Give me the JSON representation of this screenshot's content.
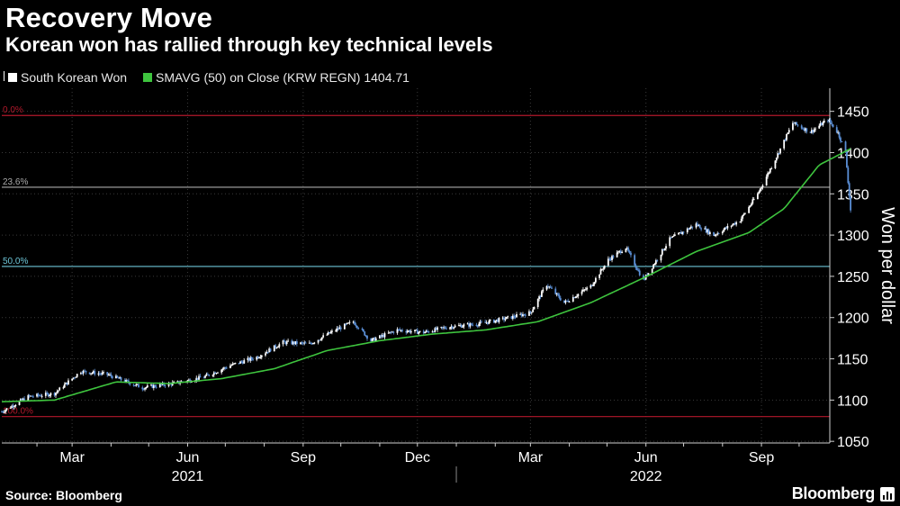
{
  "header": {
    "title": "Recovery Move",
    "subtitle": "Korean won has rallied through key technical levels"
  },
  "legend": {
    "series1_label": "South Korean Won",
    "series2_label": "SMAVG (50)  on Close (KRW REGN) 1404.71"
  },
  "footer": {
    "source": "Source: Bloomberg",
    "brand": "Bloomberg"
  },
  "colors": {
    "background": "#000000",
    "candle": "#ffffff",
    "candle_down": "#5b8fd6",
    "sma": "#3ec43e",
    "fib_red": "#b2182b",
    "fib_gray": "#aaaaaa",
    "fib_cyan": "#6ec6d8",
    "grid": "#3a3a3a"
  },
  "chart_data": {
    "type": "candlestick",
    "ylabel": "Won per dollar",
    "ylim": [
      1048,
      1478
    ],
    "yticks": [
      1050,
      1100,
      1150,
      1200,
      1250,
      1300,
      1350,
      1400,
      1450
    ],
    "xlim": [
      "2021-01-04",
      "2022-10-24"
    ],
    "x_tick_labels": [
      {
        "label": "Mar",
        "date": "2021-03-01"
      },
      {
        "label": "Jun",
        "date": "2021-06-01"
      },
      {
        "label": "Sep",
        "date": "2021-09-01"
      },
      {
        "label": "Dec",
        "date": "2021-12-01"
      },
      {
        "label": "Mar",
        "date": "2022-03-01"
      },
      {
        "label": "Jun",
        "date": "2022-06-01"
      },
      {
        "label": "Sep",
        "date": "2022-09-01"
      }
    ],
    "year_labels": [
      {
        "label": "2021",
        "date": "2021-06-01"
      },
      {
        "label": "2022",
        "date": "2022-06-01"
      }
    ],
    "year_separator_date": "2022-01-01",
    "grid": true,
    "legend_position": "top-left",
    "fib_levels": [
      {
        "label": "0.0%",
        "value": 1445
      },
      {
        "label": "23.6%",
        "value": 1358
      },
      {
        "label": "50.0%",
        "value": 1262
      },
      {
        "label": "100.0%",
        "value": 1080
      }
    ],
    "price_anchors": [
      {
        "date": "2021-01-04",
        "value": 1086
      },
      {
        "date": "2021-01-25",
        "value": 1104
      },
      {
        "date": "2021-02-15",
        "value": 1108
      },
      {
        "date": "2021-03-08",
        "value": 1135
      },
      {
        "date": "2021-03-29",
        "value": 1131
      },
      {
        "date": "2021-04-26",
        "value": 1115
      },
      {
        "date": "2021-05-24",
        "value": 1121
      },
      {
        "date": "2021-06-14",
        "value": 1128
      },
      {
        "date": "2021-07-05",
        "value": 1142
      },
      {
        "date": "2021-07-26",
        "value": 1152
      },
      {
        "date": "2021-08-16",
        "value": 1170
      },
      {
        "date": "2021-09-06",
        "value": 1168
      },
      {
        "date": "2021-09-27",
        "value": 1185
      },
      {
        "date": "2021-10-11",
        "value": 1195
      },
      {
        "date": "2021-10-25",
        "value": 1172
      },
      {
        "date": "2021-11-15",
        "value": 1185
      },
      {
        "date": "2021-12-06",
        "value": 1182
      },
      {
        "date": "2021-12-27",
        "value": 1189
      },
      {
        "date": "2022-01-17",
        "value": 1192
      },
      {
        "date": "2022-02-07",
        "value": 1198
      },
      {
        "date": "2022-03-01",
        "value": 1206
      },
      {
        "date": "2022-03-14",
        "value": 1240
      },
      {
        "date": "2022-03-28",
        "value": 1218
      },
      {
        "date": "2022-04-18",
        "value": 1238
      },
      {
        "date": "2022-05-02",
        "value": 1270
      },
      {
        "date": "2022-05-16",
        "value": 1285
      },
      {
        "date": "2022-05-30",
        "value": 1245
      },
      {
        "date": "2022-06-20",
        "value": 1295
      },
      {
        "date": "2022-07-11",
        "value": 1313
      },
      {
        "date": "2022-07-25",
        "value": 1300
      },
      {
        "date": "2022-08-15",
        "value": 1318
      },
      {
        "date": "2022-08-29",
        "value": 1350
      },
      {
        "date": "2022-09-12",
        "value": 1392
      },
      {
        "date": "2022-09-26",
        "value": 1436
      },
      {
        "date": "2022-10-10",
        "value": 1425
      },
      {
        "date": "2022-10-24",
        "value": 1440
      },
      {
        "date": "2022-11-01",
        "value": 1424
      },
      {
        "date": "2022-11-07",
        "value": 1400
      },
      {
        "date": "2022-11-11",
        "value": 1330
      }
    ],
    "sma_anchors": [
      {
        "date": "2021-01-04",
        "value": 1098
      },
      {
        "date": "2021-02-15",
        "value": 1100
      },
      {
        "date": "2021-04-05",
        "value": 1122
      },
      {
        "date": "2021-05-17",
        "value": 1120
      },
      {
        "date": "2021-06-28",
        "value": 1126
      },
      {
        "date": "2021-08-09",
        "value": 1138
      },
      {
        "date": "2021-09-20",
        "value": 1160
      },
      {
        "date": "2021-11-01",
        "value": 1172
      },
      {
        "date": "2021-12-13",
        "value": 1180
      },
      {
        "date": "2022-01-24",
        "value": 1185
      },
      {
        "date": "2022-03-07",
        "value": 1195
      },
      {
        "date": "2022-04-18",
        "value": 1218
      },
      {
        "date": "2022-05-30",
        "value": 1248
      },
      {
        "date": "2022-07-11",
        "value": 1280
      },
      {
        "date": "2022-08-22",
        "value": 1303
      },
      {
        "date": "2022-09-19",
        "value": 1332
      },
      {
        "date": "2022-10-17",
        "value": 1385
      },
      {
        "date": "2022-11-11",
        "value": 1404.71
      }
    ],
    "last_close": 1404.71
  }
}
